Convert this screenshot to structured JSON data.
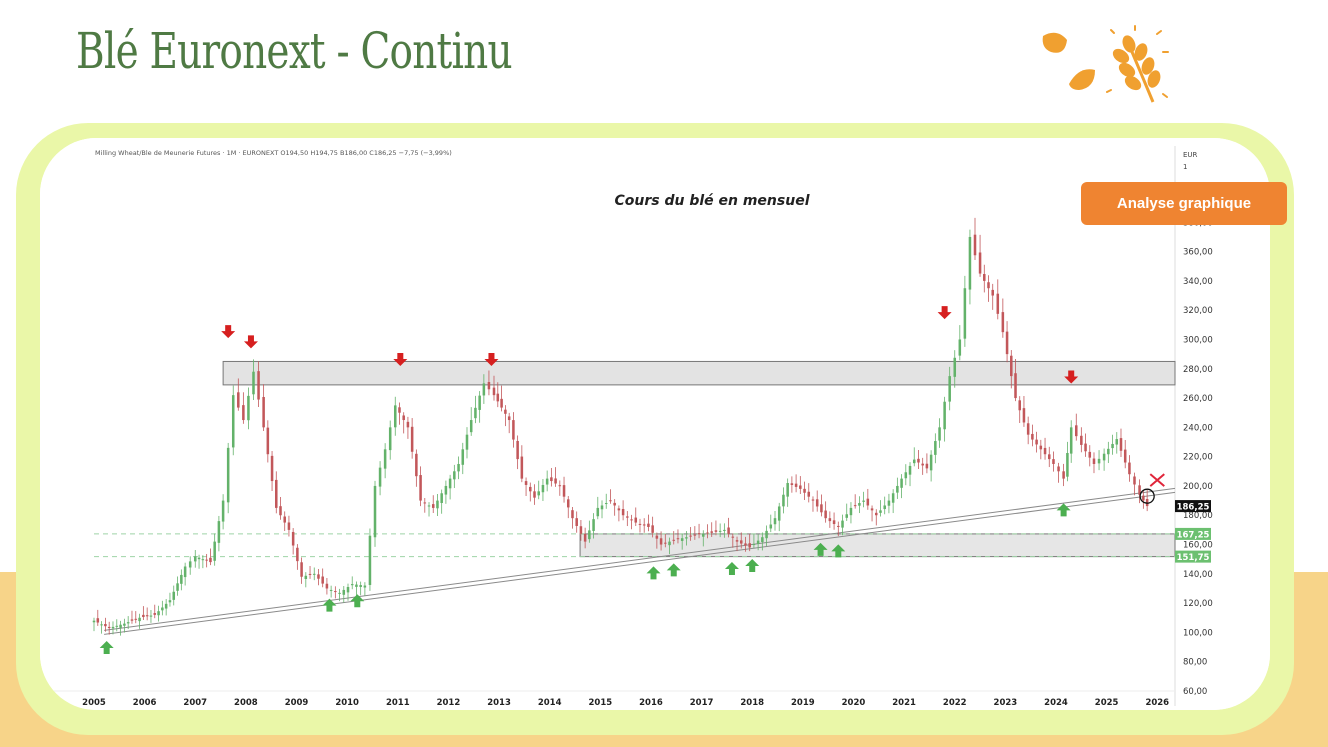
{
  "page": {
    "title": "Blé Euronext - Continu",
    "badge": "Analyse graphique"
  },
  "colors": {
    "title": "#4f7a44",
    "accent": "#ef8431",
    "frame": "#eaf7a8",
    "up": "#63b26a",
    "down": "#c2575a",
    "arrow_up": "#4caf50",
    "arrow_down": "#d61f1f",
    "price_tag": "#111111"
  },
  "icons": {
    "logo": "wheat-ear-with-leaves-icon"
  },
  "chart_data": {
    "type": "candlestick",
    "header": "Milling Wheat/Ble de Meunerie Futures · 1M · EURONEXT  O194,50  H194,75  B186,00  C186,25  −7,75 (−3,99%)",
    "title": "Cours du blé en mensuel",
    "currency": "EUR",
    "currency_sub": "1",
    "x_range": [
      2005.0,
      2026.35
    ],
    "ylim": [
      60,
      428
    ],
    "x_ticks": [
      "2005",
      "2006",
      "2007",
      "2008",
      "2009",
      "2010",
      "2011",
      "2012",
      "2013",
      "2014",
      "2015",
      "2016",
      "2017",
      "2018",
      "2019",
      "2020",
      "2021",
      "2022",
      "2023",
      "2024",
      "2025",
      "2026"
    ],
    "y_ticks": [
      "60,00",
      "80,00",
      "100,00",
      "120,00",
      "140,00",
      "160,00",
      "180,00",
      "200,00",
      "220,00",
      "240,00",
      "260,00",
      "280,00",
      "300,00",
      "320,00",
      "340,00",
      "360,00",
      "380,00",
      "400,00"
    ],
    "price_labels": [
      {
        "value": 186.25,
        "label": "186,25",
        "style": "dark"
      },
      {
        "value": 167.25,
        "label": "167,25",
        "style": "green"
      },
      {
        "value": 151.75,
        "label": "151,75",
        "style": "green"
      }
    ],
    "resistance_zone": {
      "x_from": 2005.0,
      "x_to": 2026.35,
      "low": 269,
      "high": 285
    },
    "support_zone": {
      "x_from": 2014.6,
      "x_to": 2026.35,
      "low": 151.75,
      "high": 167.25
    },
    "support_dashes": [
      167.25,
      151.75
    ],
    "trendline": {
      "from": [
        2005.2,
        100
      ],
      "to": [
        2026.35,
        197
      ]
    },
    "closes": [
      {
        "x": 2005.0,
        "c": 108
      },
      {
        "x": 2005.3,
        "c": 103
      },
      {
        "x": 2005.6,
        "c": 106
      },
      {
        "x": 2005.9,
        "c": 110
      },
      {
        "x": 2006.2,
        "c": 112
      },
      {
        "x": 2006.5,
        "c": 122
      },
      {
        "x": 2006.8,
        "c": 145
      },
      {
        "x": 2007.0,
        "c": 152
      },
      {
        "x": 2007.3,
        "c": 148
      },
      {
        "x": 2007.55,
        "c": 190
      },
      {
        "x": 2007.75,
        "c": 262
      },
      {
        "x": 2007.95,
        "c": 245
      },
      {
        "x": 2008.15,
        "c": 278
      },
      {
        "x": 2008.35,
        "c": 240
      },
      {
        "x": 2008.6,
        "c": 185
      },
      {
        "x": 2008.85,
        "c": 170
      },
      {
        "x": 2009.1,
        "c": 138
      },
      {
        "x": 2009.35,
        "c": 140
      },
      {
        "x": 2009.6,
        "c": 130
      },
      {
        "x": 2009.85,
        "c": 127
      },
      {
        "x": 2010.1,
        "c": 133
      },
      {
        "x": 2010.35,
        "c": 132
      },
      {
        "x": 2010.55,
        "c": 200
      },
      {
        "x": 2010.75,
        "c": 225
      },
      {
        "x": 2010.95,
        "c": 255
      },
      {
        "x": 2011.2,
        "c": 240
      },
      {
        "x": 2011.45,
        "c": 190
      },
      {
        "x": 2011.7,
        "c": 185
      },
      {
        "x": 2011.95,
        "c": 200
      },
      {
        "x": 2012.2,
        "c": 215
      },
      {
        "x": 2012.45,
        "c": 245
      },
      {
        "x": 2012.7,
        "c": 270
      },
      {
        "x": 2012.9,
        "c": 262
      },
      {
        "x": 2013.2,
        "c": 245
      },
      {
        "x": 2013.45,
        "c": 205
      },
      {
        "x": 2013.7,
        "c": 192
      },
      {
        "x": 2013.95,
        "c": 205
      },
      {
        "x": 2014.2,
        "c": 200
      },
      {
        "x": 2014.45,
        "c": 178
      },
      {
        "x": 2014.7,
        "c": 162
      },
      {
        "x": 2014.95,
        "c": 185
      },
      {
        "x": 2015.2,
        "c": 190
      },
      {
        "x": 2015.45,
        "c": 180
      },
      {
        "x": 2015.7,
        "c": 175
      },
      {
        "x": 2015.95,
        "c": 172
      },
      {
        "x": 2016.2,
        "c": 160
      },
      {
        "x": 2016.45,
        "c": 163
      },
      {
        "x": 2016.7,
        "c": 165
      },
      {
        "x": 2016.95,
        "c": 167
      },
      {
        "x": 2017.2,
        "c": 168
      },
      {
        "x": 2017.45,
        "c": 170
      },
      {
        "x": 2017.7,
        "c": 162
      },
      {
        "x": 2017.95,
        "c": 158
      },
      {
        "x": 2018.2,
        "c": 165
      },
      {
        "x": 2018.45,
        "c": 178
      },
      {
        "x": 2018.7,
        "c": 202
      },
      {
        "x": 2018.95,
        "c": 198
      },
      {
        "x": 2019.2,
        "c": 190
      },
      {
        "x": 2019.45,
        "c": 178
      },
      {
        "x": 2019.7,
        "c": 172
      },
      {
        "x": 2019.95,
        "c": 185
      },
      {
        "x": 2020.2,
        "c": 190
      },
      {
        "x": 2020.45,
        "c": 180
      },
      {
        "x": 2020.7,
        "c": 190
      },
      {
        "x": 2020.95,
        "c": 205
      },
      {
        "x": 2021.2,
        "c": 218
      },
      {
        "x": 2021.45,
        "c": 212
      },
      {
        "x": 2021.7,
        "c": 240
      },
      {
        "x": 2021.9,
        "c": 275
      },
      {
        "x": 2022.1,
        "c": 300
      },
      {
        "x": 2022.3,
        "c": 370
      },
      {
        "x": 2022.5,
        "c": 345
      },
      {
        "x": 2022.75,
        "c": 330
      },
      {
        "x": 2022.95,
        "c": 305
      },
      {
        "x": 2023.2,
        "c": 260
      },
      {
        "x": 2023.45,
        "c": 235
      },
      {
        "x": 2023.7,
        "c": 225
      },
      {
        "x": 2023.95,
        "c": 215
      },
      {
        "x": 2024.15,
        "c": 205
      },
      {
        "x": 2024.3,
        "c": 240
      },
      {
        "x": 2024.5,
        "c": 228
      },
      {
        "x": 2024.75,
        "c": 215
      },
      {
        "x": 2024.95,
        "c": 222
      },
      {
        "x": 2025.2,
        "c": 232
      },
      {
        "x": 2025.45,
        "c": 208
      },
      {
        "x": 2025.65,
        "c": 194
      },
      {
        "x": 2025.8,
        "c": 186.25
      }
    ],
    "annotations": [
      {
        "type": "arrow_down",
        "x": 2007.65,
        "y": 305
      },
      {
        "type": "arrow_down",
        "x": 2008.1,
        "y": 298
      },
      {
        "type": "arrow_down",
        "x": 2011.05,
        "y": 286
      },
      {
        "type": "arrow_down",
        "x": 2012.85,
        "y": 286
      },
      {
        "type": "arrow_down",
        "x": 2021.8,
        "y": 318
      },
      {
        "type": "arrow_down",
        "x": 2024.3,
        "y": 274
      },
      {
        "type": "arrow_up",
        "x": 2005.25,
        "y": 90
      },
      {
        "type": "arrow_up",
        "x": 2009.65,
        "y": 119
      },
      {
        "type": "arrow_up",
        "x": 2010.2,
        "y": 122
      },
      {
        "type": "arrow_up",
        "x": 2016.05,
        "y": 141
      },
      {
        "type": "arrow_up",
        "x": 2016.45,
        "y": 143
      },
      {
        "type": "arrow_up",
        "x": 2017.6,
        "y": 144
      },
      {
        "type": "arrow_up",
        "x": 2018.0,
        "y": 146
      },
      {
        "type": "arrow_up",
        "x": 2019.35,
        "y": 157
      },
      {
        "type": "arrow_up",
        "x": 2019.7,
        "y": 156
      },
      {
        "type": "arrow_up",
        "x": 2024.15,
        "y": 184
      },
      {
        "type": "circle",
        "x": 2025.8,
        "y": 193
      },
      {
        "type": "cross",
        "x": 2026.0,
        "y": 204
      }
    ]
  }
}
